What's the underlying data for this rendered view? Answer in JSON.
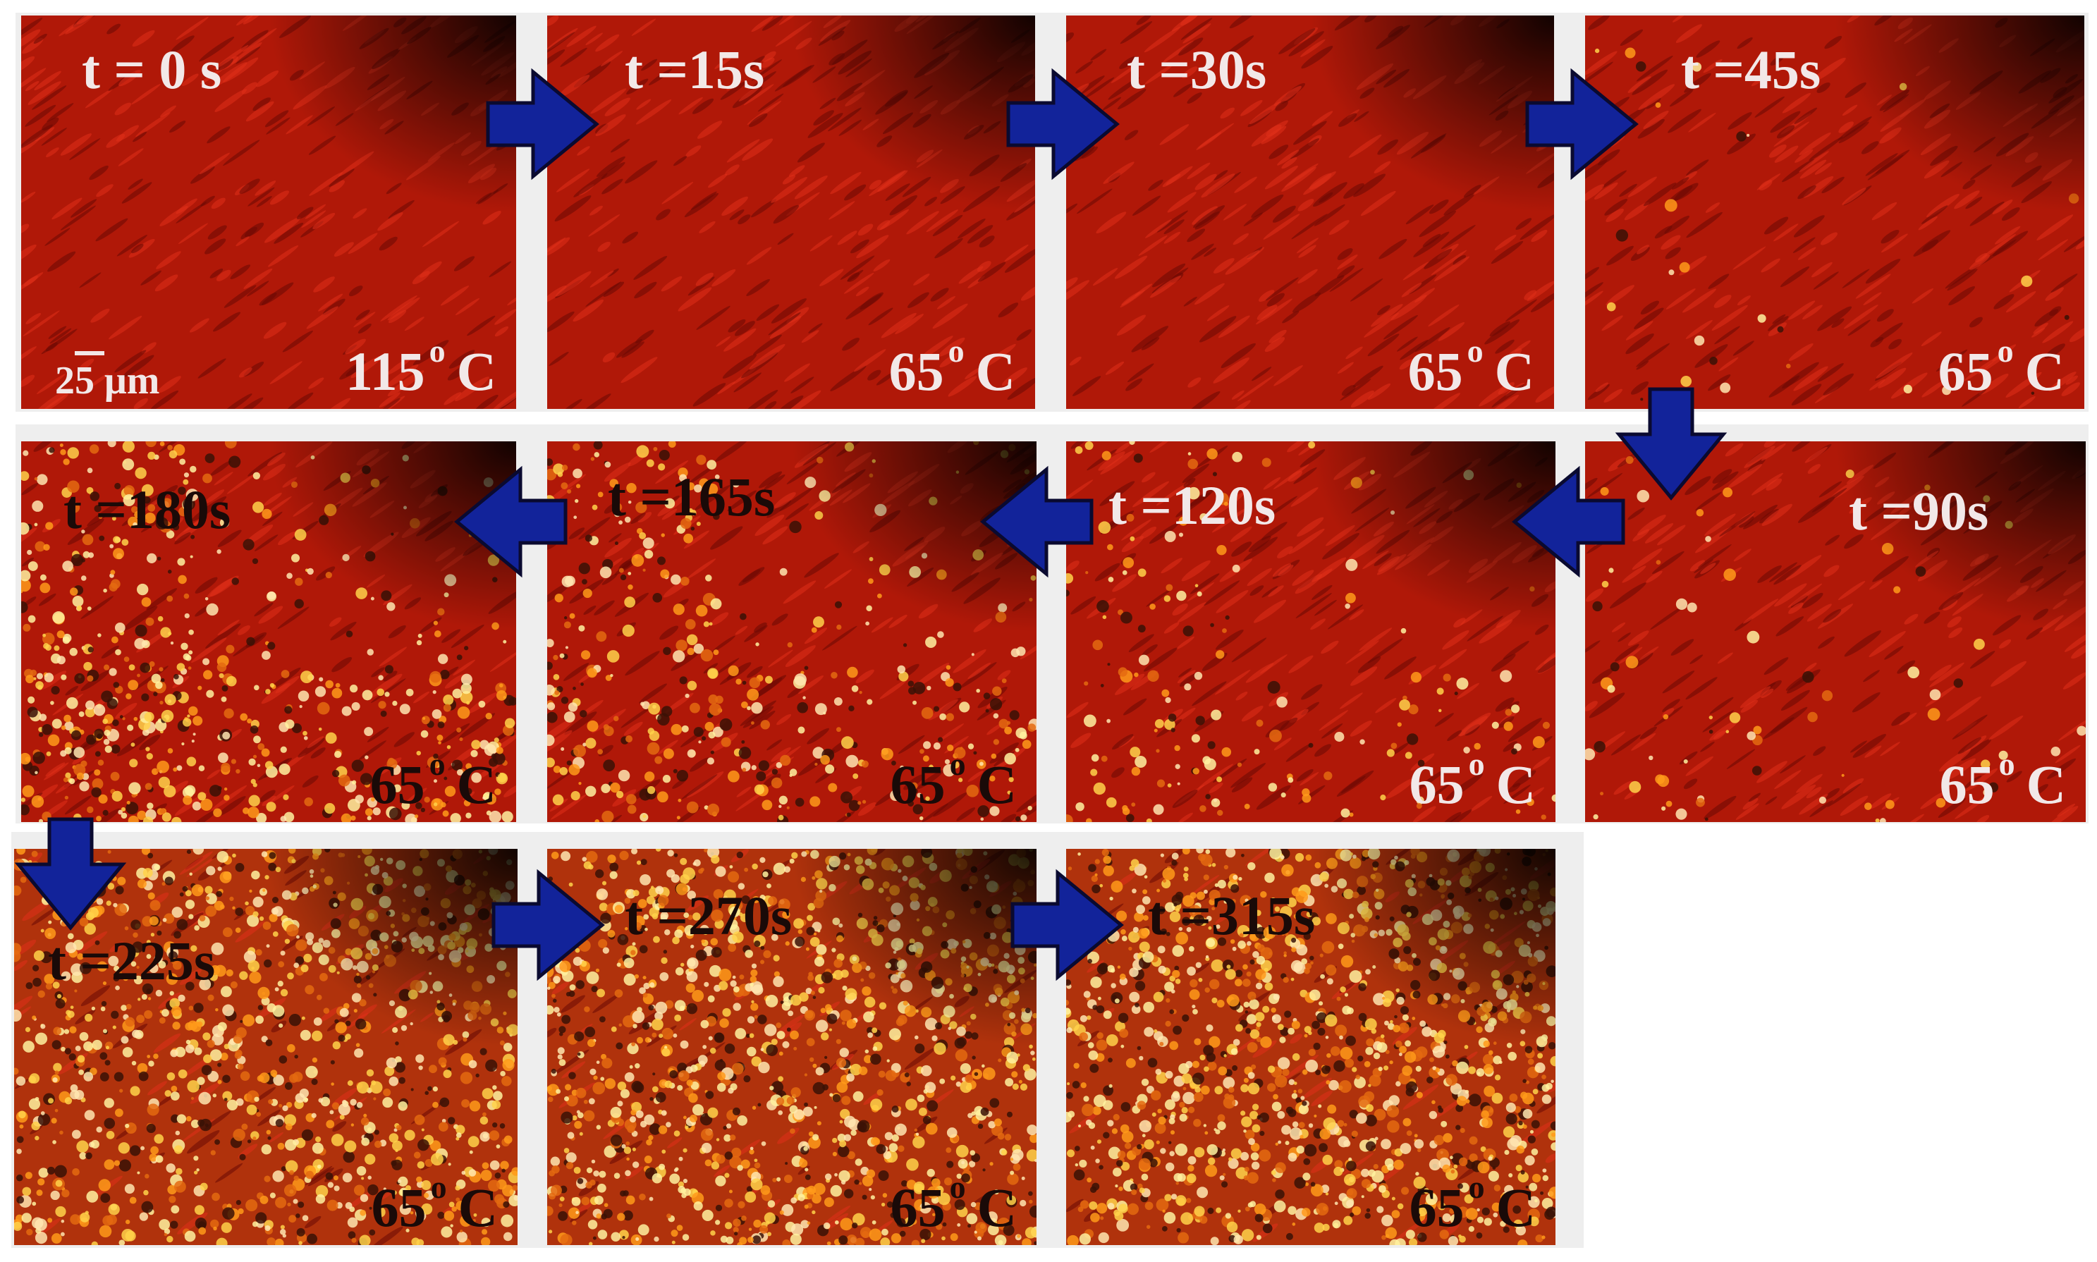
{
  "colors": {
    "label_light": "#f2e8e8",
    "label_dark": "#1a0a08",
    "arrow_fill": "#12239a",
    "arrow_stroke": "#0a0a30",
    "gap": "#eeeeee"
  },
  "panels": [
    {
      "time": "t = 0 s",
      "temp_value": "115",
      "temp_unit": "C",
      "scale_bar": "25 μm",
      "crystallinity": 0.0
    },
    {
      "time": "t =15s",
      "temp_value": "65",
      "temp_unit": "C",
      "crystallinity": 0.0
    },
    {
      "time": "t =30s",
      "temp_value": "65",
      "temp_unit": "C",
      "crystallinity": 0.0
    },
    {
      "time": "t =45s",
      "temp_value": "65",
      "temp_unit": "C",
      "crystallinity": 0.02
    },
    {
      "time": "t =90s",
      "temp_value": "65",
      "temp_unit": "C",
      "crystallinity": 0.05
    },
    {
      "time": "t =120s",
      "temp_value": "65",
      "temp_unit": "C",
      "crystallinity": 0.12
    },
    {
      "time": "t =165s",
      "temp_value": "65",
      "temp_unit": "C",
      "crystallinity": 0.3
    },
    {
      "time": "t =180s",
      "temp_value": "65",
      "temp_unit": "C",
      "crystallinity": 0.45
    },
    {
      "time": "t =225s",
      "temp_value": "65",
      "temp_unit": "C",
      "crystallinity": 0.8
    },
    {
      "time": "t =270s",
      "temp_value": "65",
      "temp_unit": "C",
      "crystallinity": 0.92
    },
    {
      "time": "t =315s",
      "temp_value": "65",
      "temp_unit": "C",
      "crystallinity": 0.95
    }
  ],
  "arrows": [
    {
      "direction": "right"
    },
    {
      "direction": "right"
    },
    {
      "direction": "right"
    },
    {
      "direction": "down"
    },
    {
      "direction": "left"
    },
    {
      "direction": "left"
    },
    {
      "direction": "left"
    },
    {
      "direction": "down"
    },
    {
      "direction": "right"
    },
    {
      "direction": "right"
    }
  ]
}
